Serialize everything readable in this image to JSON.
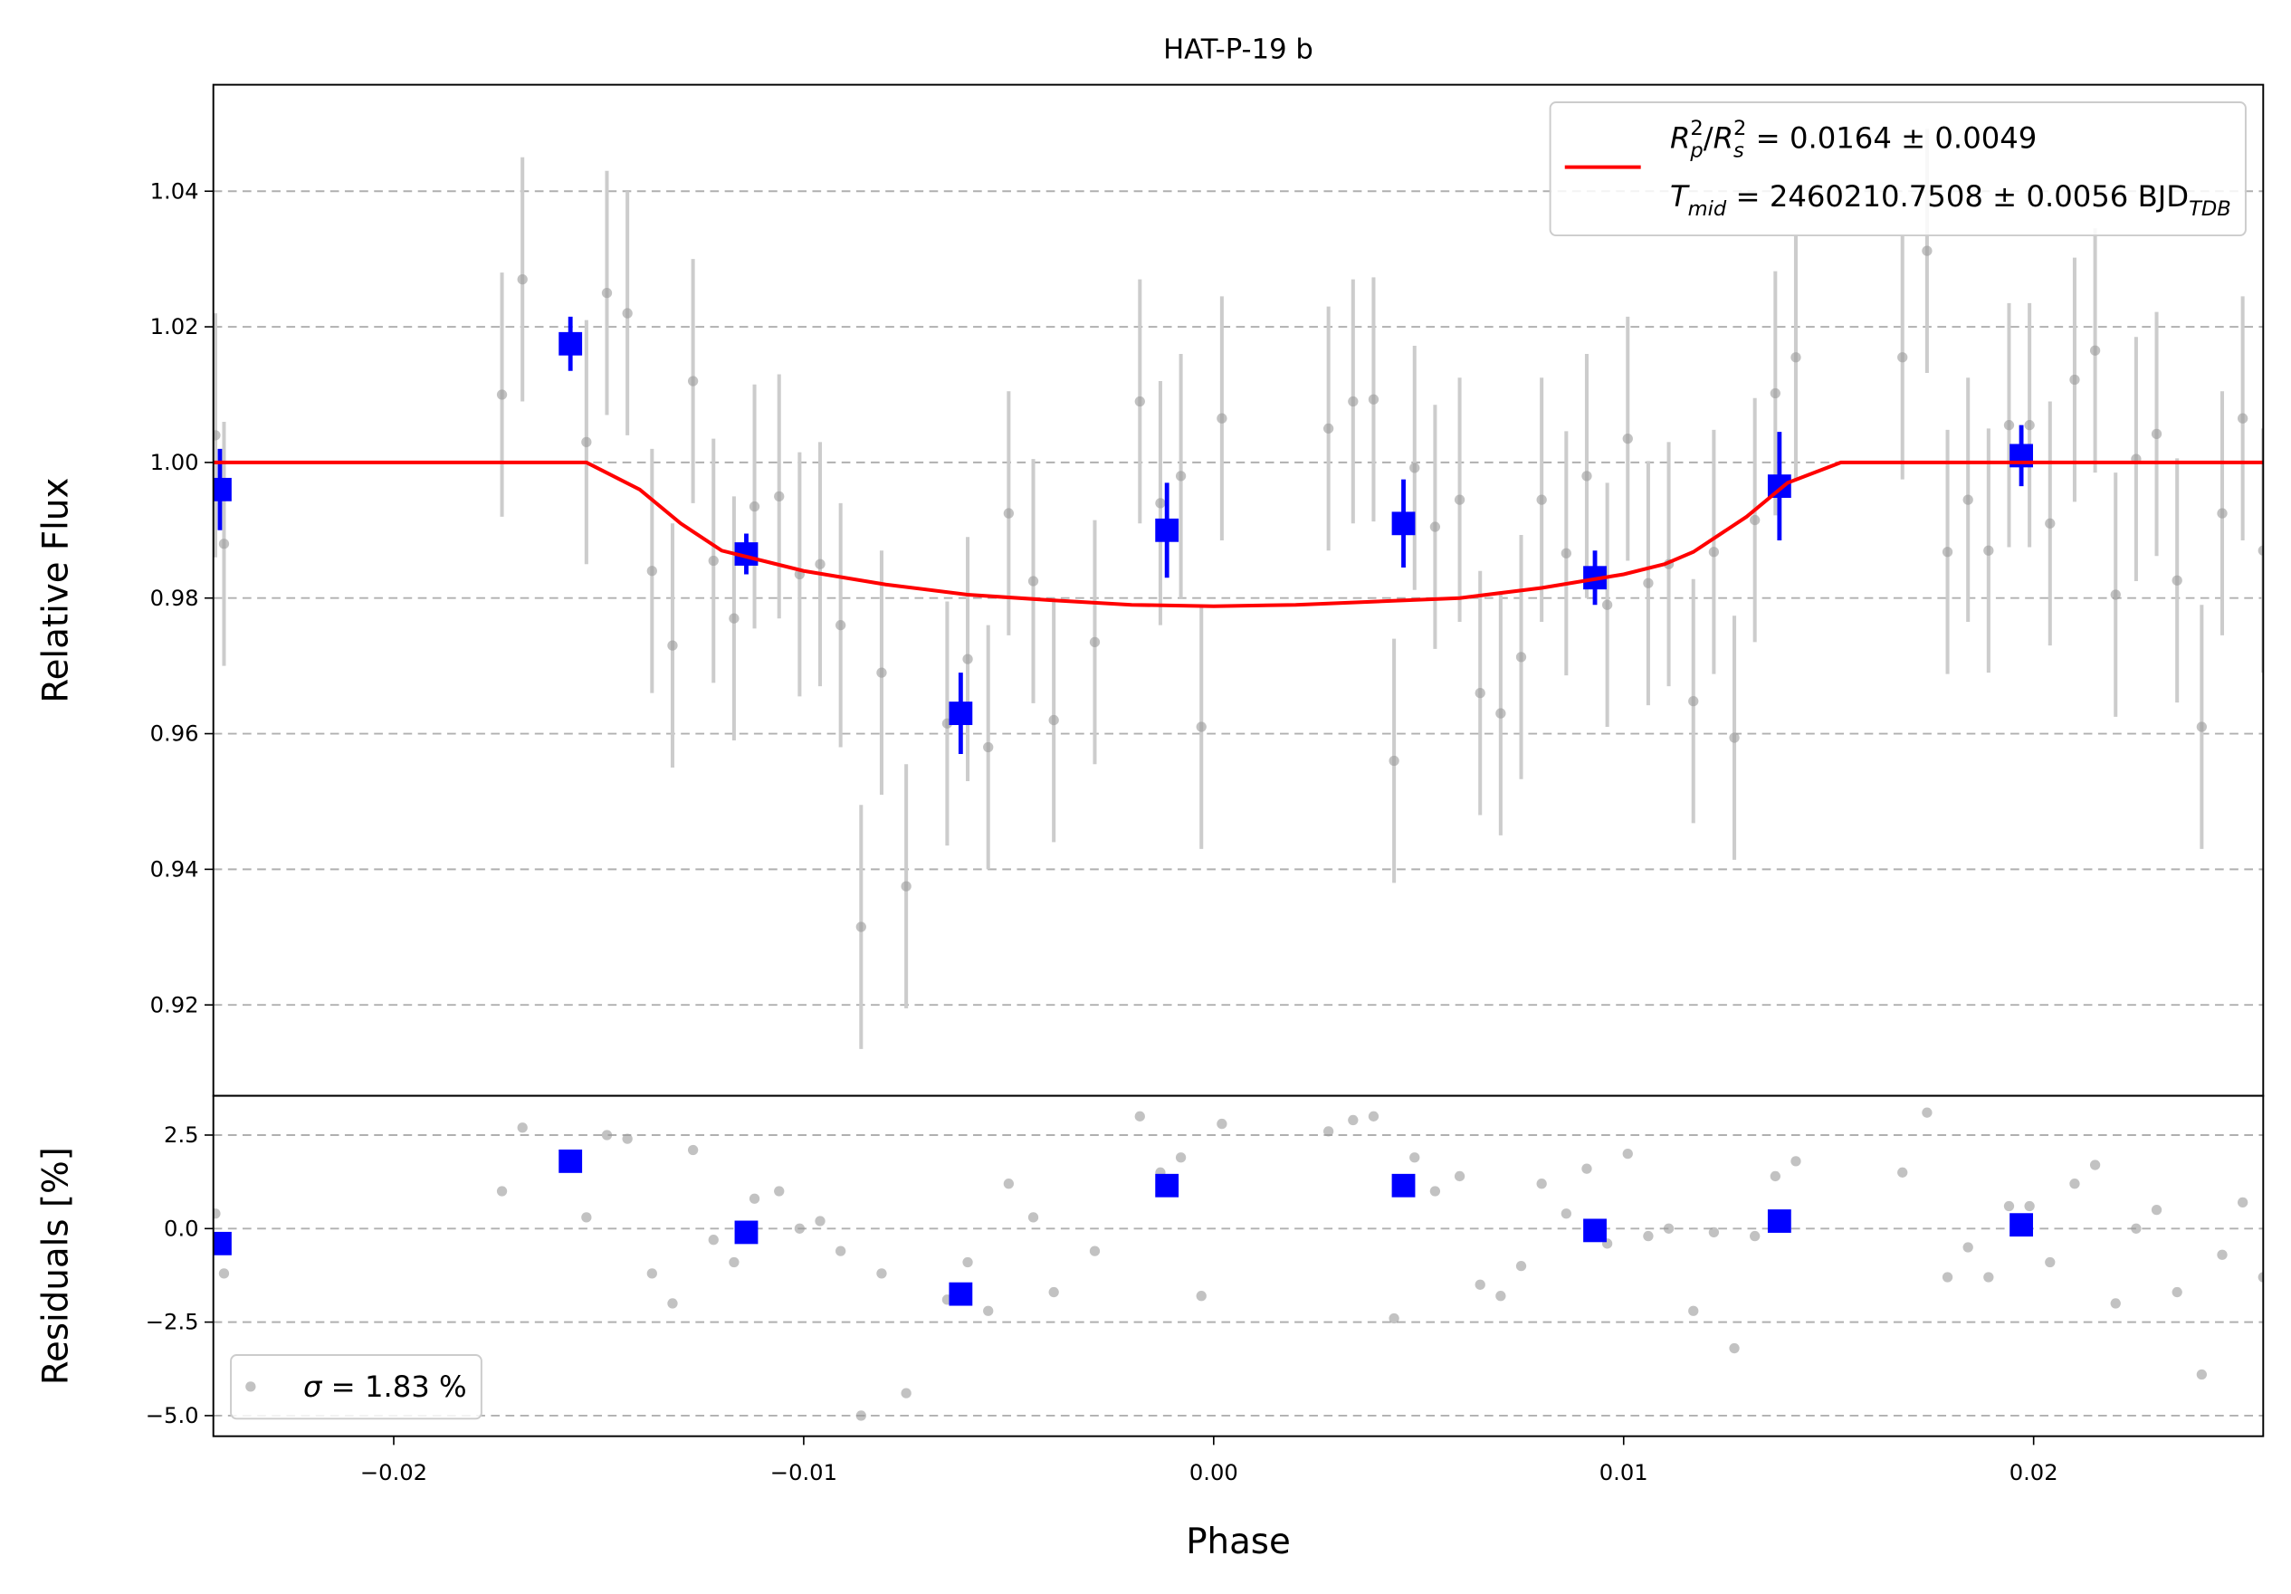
{
  "chart_data": [
    {
      "type": "scatter",
      "title": "HAT-P-19 b",
      "ylabel": "Relative Flux",
      "xlim": [
        -0.0244,
        0.0256
      ],
      "ylim": [
        0.9066,
        1.0557
      ],
      "yticks": [
        0.92,
        0.94,
        0.96,
        0.98,
        {
          "value": 1,
          "label": "1.00"
        },
        1.02,
        1.04
      ],
      "grid": true,
      "legend": "upper right",
      "series": [
        {
          "type": "scatter",
          "marker": "circle",
          "color": "#999999",
          "ecolor": "#cccccc",
          "yerr": 0.018,
          "x": [
            -0.02435,
            -0.02414,
            -0.01736,
            -0.01686,
            -0.0153,
            -0.0148,
            -0.0143,
            -0.0137,
            -0.0132,
            -0.0127,
            -0.0122,
            -0.0117,
            -0.0112,
            -0.0106,
            -0.0101,
            -0.0096,
            -0.0091,
            -0.0086,
            -0.0081,
            -0.0075,
            -0.0065,
            -0.006,
            -0.0055,
            -0.005,
            -0.0044,
            -0.0039,
            -0.0029,
            -0.0018,
            -0.0013,
            -0.0008,
            -0.0003,
            0.0002,
            0.0028,
            0.0034,
            0.0039,
            0.0044,
            0.0049,
            0.0054,
            0.006,
            0.0065,
            0.007,
            0.0075,
            0.008,
            0.0086,
            0.0091,
            0.0096,
            0.0101,
            0.0106,
            0.0111,
            0.0117,
            0.0122,
            0.0127,
            0.0132,
            0.0137,
            0.0142,
            0.0168,
            0.0174,
            0.0179,
            0.0184,
            0.0189,
            0.0194,
            0.0199,
            0.0204,
            0.021,
            0.0215,
            0.022,
            0.0225,
            0.023,
            0.0235,
            0.0241,
            0.0246,
            0.0251,
            0.0256
          ],
          "values": [
            1.004,
            0.988,
            1.01,
            1.027,
            1.003,
            1.025,
            1.022,
            0.984,
            0.973,
            1.012,
            0.9855,
            0.977,
            0.9935,
            0.995,
            0.9835,
            0.985,
            0.976,
            0.9315,
            0.969,
            0.9375,
            0.9615,
            0.971,
            0.958,
            0.9925,
            0.9825,
            0.962,
            0.9735,
            1.009,
            0.994,
            0.998,
            0.961,
            1.0065,
            1.005,
            1.009,
            1.0093,
            0.956,
            0.9992,
            0.9905,
            0.9945,
            0.966,
            0.963,
            0.9713,
            0.9945,
            0.9866,
            0.998,
            0.979,
            1.0035,
            0.9822,
            0.985,
            0.9648,
            0.9868,
            0.9594,
            0.9915,
            1.0102,
            1.0155,
            1.0155,
            1.0312,
            0.9868,
            0.9945,
            0.987,
            1.0055,
            1.0055,
            0.991,
            1.0122,
            1.0165,
            0.9805,
            1.0005,
            1.0042,
            0.9826,
            0.961,
            0.9925,
            1.0065,
            0.987
          ]
        },
        {
          "type": "scatter",
          "marker": "square",
          "color": "#0000ff",
          "ecolor": "#0000ff",
          "x": [
            -0.02424,
            -0.01569,
            -0.0114,
            -0.00617,
            -0.00114,
            0.00463,
            0.0093,
            0.0138,
            0.0197
          ],
          "values": [
            0.996,
            1.0175,
            0.9865,
            0.963,
            0.99,
            0.991,
            0.983,
            0.9965,
            1.001
          ],
          "yerr": [
            0.006,
            0.004,
            0.003,
            0.006,
            0.007,
            0.0065,
            0.004,
            0.008,
            0.0045
          ]
        },
        {
          "type": "line",
          "color": "#ff0000",
          "name": [
            [
              {
                "text": "R",
                "italic": true
              },
              {
                "text": "p",
                "italic": true,
                "shift": "sub"
              },
              {
                "text": "2",
                "shift": "sup"
              },
              {
                "text": "/"
              },
              {
                "text": "R",
                "italic": true
              },
              {
                "text": "s",
                "italic": true,
                "shift": "sub"
              },
              {
                "text": "2",
                "shift": "sup"
              },
              {
                "text": " = 0.0164 ± 0.0049"
              }
            ],
            [
              {
                "text": "T",
                "italic": true
              },
              {
                "text": "mid",
                "italic": true,
                "shift": "sub"
              },
              {
                "text": " = 2460210.7508 ± 0.0056 BJD"
              },
              {
                "text": "TDB",
                "italic": true,
                "shift": "sub"
              }
            ]
          ],
          "x": [
            -0.0244,
            -0.0153,
            -0.014,
            -0.013,
            -0.012,
            -0.011,
            -0.01,
            -0.008,
            -0.006,
            -0.004,
            -0.002,
            0,
            0.002,
            0.004,
            0.006,
            0.008,
            0.01,
            0.011,
            0.0117,
            0.013,
            0.014,
            0.0153,
            0.0256
          ],
          "values": [
            1.0,
            1.0,
            0.996,
            0.991,
            0.987,
            0.9855,
            0.984,
            0.982,
            0.9805,
            0.9797,
            0.979,
            0.9788,
            0.979,
            0.9795,
            0.98,
            0.9815,
            0.9835,
            0.985,
            0.9868,
            0.992,
            0.997,
            1.0,
            1.0
          ]
        }
      ]
    },
    {
      "type": "scatter",
      "ylabel": "Residuals [%]",
      "xlabel": "Phase",
      "xlim": [
        -0.0244,
        0.0256
      ],
      "ylim": [
        -5.55,
        3.55
      ],
      "xticks": [
        {
          "value": -0.02,
          "label": "−0.02"
        },
        {
          "value": -0.01,
          "label": "−0.01"
        },
        {
          "value": 0,
          "label": "0.00"
        },
        0.01,
        0.02
      ],
      "yticks": [
        {
          "value": -5,
          "label": "−5.0"
        },
        {
          "value": -2.5,
          "label": "−2.5"
        },
        {
          "value": 0,
          "label": "0.0"
        },
        2.5
      ],
      "grid": true,
      "legend": "lower left",
      "series": [
        {
          "type": "scatter",
          "marker": "circle",
          "color": "#999999",
          "name": [
            [
              {
                "text": "σ",
                "italic": true
              },
              {
                "text": " = 1.83 %"
              }
            ]
          ],
          "x": [
            -0.02435,
            -0.02414,
            -0.01736,
            -0.01686,
            -0.0153,
            -0.0148,
            -0.0143,
            -0.0137,
            -0.0132,
            -0.0127,
            -0.0122,
            -0.0117,
            -0.0112,
            -0.0106,
            -0.0101,
            -0.0096,
            -0.0091,
            -0.0086,
            -0.0081,
            -0.0075,
            -0.0065,
            -0.006,
            -0.0055,
            -0.005,
            -0.0044,
            -0.0039,
            -0.0029,
            -0.0018,
            -0.0013,
            -0.0008,
            -0.0003,
            0.0002,
            0.0028,
            0.0034,
            0.0039,
            0.0044,
            0.0049,
            0.0054,
            0.006,
            0.0065,
            0.007,
            0.0075,
            0.008,
            0.0086,
            0.0091,
            0.0096,
            0.0101,
            0.0106,
            0.0111,
            0.0117,
            0.0122,
            0.0127,
            0.0132,
            0.0137,
            0.0142,
            0.0168,
            0.0174,
            0.0179,
            0.0184,
            0.0189,
            0.0194,
            0.0199,
            0.0204,
            0.021,
            0.0215,
            0.022,
            0.0225,
            0.023,
            0.0235,
            0.0241,
            0.0246,
            0.0251,
            0.0256
          ],
          "values": [
            0.4,
            -1.2,
            1.0,
            2.7,
            0.3,
            2.5,
            2.4,
            -1.2,
            -2.0,
            2.1,
            -0.3,
            -0.9,
            0.8,
            1.0,
            0.0,
            0.2,
            -0.6,
            -5.0,
            -1.2,
            -4.4,
            -1.9,
            -0.9,
            -2.2,
            1.2,
            0.3,
            -1.7,
            -0.6,
            3.0,
            1.5,
            1.9,
            -1.8,
            2.8,
            2.6,
            2.9,
            3.0,
            -2.4,
            1.9,
            1.0,
            1.4,
            -1.5,
            -1.8,
            -1.0,
            1.2,
            0.4,
            1.6,
            -0.4,
            2.0,
            -0.2,
            0.0,
            -2.2,
            -0.1,
            -3.2,
            -0.2,
            1.4,
            1.8,
            1.5,
            3.1,
            -1.3,
            -0.5,
            -1.3,
            0.6,
            0.6,
            -0.9,
            1.2,
            1.7,
            -2.0,
            0.0,
            0.5,
            -1.7,
            -3.9,
            -0.7,
            0.7,
            -1.3
          ]
        },
        {
          "type": "scatter",
          "marker": "square",
          "color": "#0000ff",
          "x": [
            -0.02424,
            -0.01569,
            -0.0114,
            -0.00617,
            -0.00114,
            0.00463,
            0.0093,
            0.0138,
            0.0197
          ],
          "values": [
            -0.4,
            1.8,
            -0.1,
            -1.75,
            1.15,
            1.15,
            -0.05,
            0.2,
            0.1
          ]
        }
      ]
    }
  ]
}
